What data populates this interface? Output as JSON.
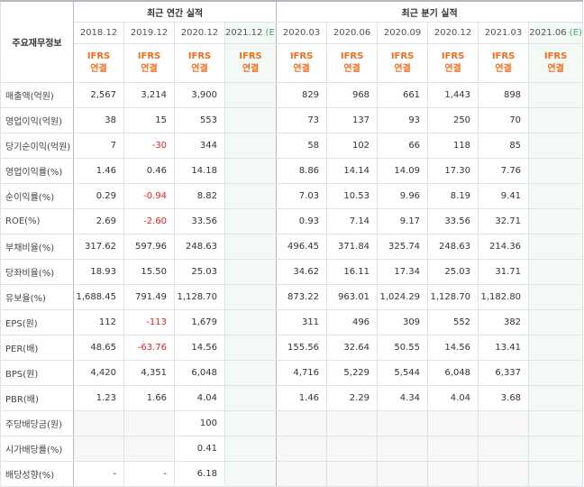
{
  "header": {
    "label": "주요재무정보",
    "annual_title": "최근 연간 실적",
    "quarter_title": "최근 분기 실적",
    "annual_periods": [
      "2018.12",
      "2019.12",
      "2020.12",
      "2021.12"
    ],
    "annual_est_mark": "(E)",
    "quarter_periods": [
      "2020.03",
      "2020.06",
      "2020.09",
      "2020.12",
      "2021.03",
      "2021.06"
    ],
    "quarter_est_mark": "(E)",
    "acct_line1": "IFRS",
    "acct_line2": "연결"
  },
  "colors": {
    "negative": "#e02424",
    "estimate_bg": "#f3faf5",
    "acct_text": "#f06f1e"
  },
  "rows": [
    {
      "label": "매출액(억원)",
      "annual": [
        "2,567",
        "3,214",
        "3,900",
        ""
      ],
      "quarter": [
        "829",
        "968",
        "661",
        "1,443",
        "898",
        ""
      ]
    },
    {
      "label": "영업이익(억원)",
      "annual": [
        "38",
        "15",
        "553",
        ""
      ],
      "quarter": [
        "73",
        "137",
        "93",
        "250",
        "70",
        ""
      ]
    },
    {
      "label": "당기순이익(억원)",
      "annual": [
        "7",
        "-30",
        "344",
        ""
      ],
      "quarter": [
        "58",
        "102",
        "66",
        "118",
        "85",
        ""
      ]
    },
    {
      "label": "영업이익률(%)",
      "annual": [
        "1.46",
        "0.46",
        "14.18",
        ""
      ],
      "quarter": [
        "8.86",
        "14.14",
        "14.09",
        "17.30",
        "7.76",
        ""
      ]
    },
    {
      "label": "순이익률(%)",
      "annual": [
        "0.29",
        "-0.94",
        "8.82",
        ""
      ],
      "quarter": [
        "7.03",
        "10.53",
        "9.96",
        "8.19",
        "9.41",
        ""
      ]
    },
    {
      "label": "ROE(%)",
      "annual": [
        "2.69",
        "-2.60",
        "33.56",
        ""
      ],
      "quarter": [
        "0.93",
        "7.14",
        "9.17",
        "33.56",
        "32.71",
        ""
      ]
    },
    {
      "label": "부채비율(%)",
      "annual": [
        "317.62",
        "597.96",
        "248.63",
        ""
      ],
      "quarter": [
        "496.45",
        "371.84",
        "325.74",
        "248.63",
        "214.36",
        ""
      ]
    },
    {
      "label": "당좌비율(%)",
      "annual": [
        "18.93",
        "15.50",
        "25.03",
        ""
      ],
      "quarter": [
        "34.62",
        "16.11",
        "17.34",
        "25.03",
        "31.71",
        ""
      ]
    },
    {
      "label": "유보율(%)",
      "annual": [
        "1,688.45",
        "791.49",
        "1,128.70",
        ""
      ],
      "quarter": [
        "873.22",
        "963.01",
        "1,024.29",
        "1,128.70",
        "1,182.80",
        ""
      ]
    },
    {
      "label": "EPS(원)",
      "annual": [
        "112",
        "-113",
        "1,679",
        ""
      ],
      "quarter": [
        "311",
        "496",
        "309",
        "552",
        "382",
        ""
      ]
    },
    {
      "label": "PER(배)",
      "annual": [
        "48.65",
        "-63.76",
        "14.56",
        ""
      ],
      "quarter": [
        "155.56",
        "32.64",
        "50.55",
        "14.56",
        "13.41",
        ""
      ]
    },
    {
      "label": "BPS(원)",
      "annual": [
        "4,420",
        "4,351",
        "6,048",
        ""
      ],
      "quarter": [
        "4,716",
        "5,229",
        "5,544",
        "6,048",
        "6,337",
        ""
      ]
    },
    {
      "label": "PBR(배)",
      "annual": [
        "1.23",
        "1.66",
        "4.04",
        ""
      ],
      "quarter": [
        "1.46",
        "2.29",
        "4.34",
        "4.04",
        "3.68",
        ""
      ]
    },
    {
      "label": "주당배당금(원)",
      "annual": [
        "",
        "",
        "100",
        ""
      ],
      "quarter": [
        "",
        "",
        "",
        "",
        "",
        ""
      ]
    },
    {
      "label": "시가배당률(%)",
      "annual": [
        "",
        "",
        "0.41",
        ""
      ],
      "quarter": [
        "",
        "",
        "",
        "",
        "",
        ""
      ]
    },
    {
      "label": "배당성향(%)",
      "annual": [
        "-",
        "-",
        "6.18",
        ""
      ],
      "quarter": [
        "",
        "",
        "",
        "",
        "",
        ""
      ]
    }
  ],
  "group_starts": [
    0,
    3,
    6,
    9,
    13
  ]
}
